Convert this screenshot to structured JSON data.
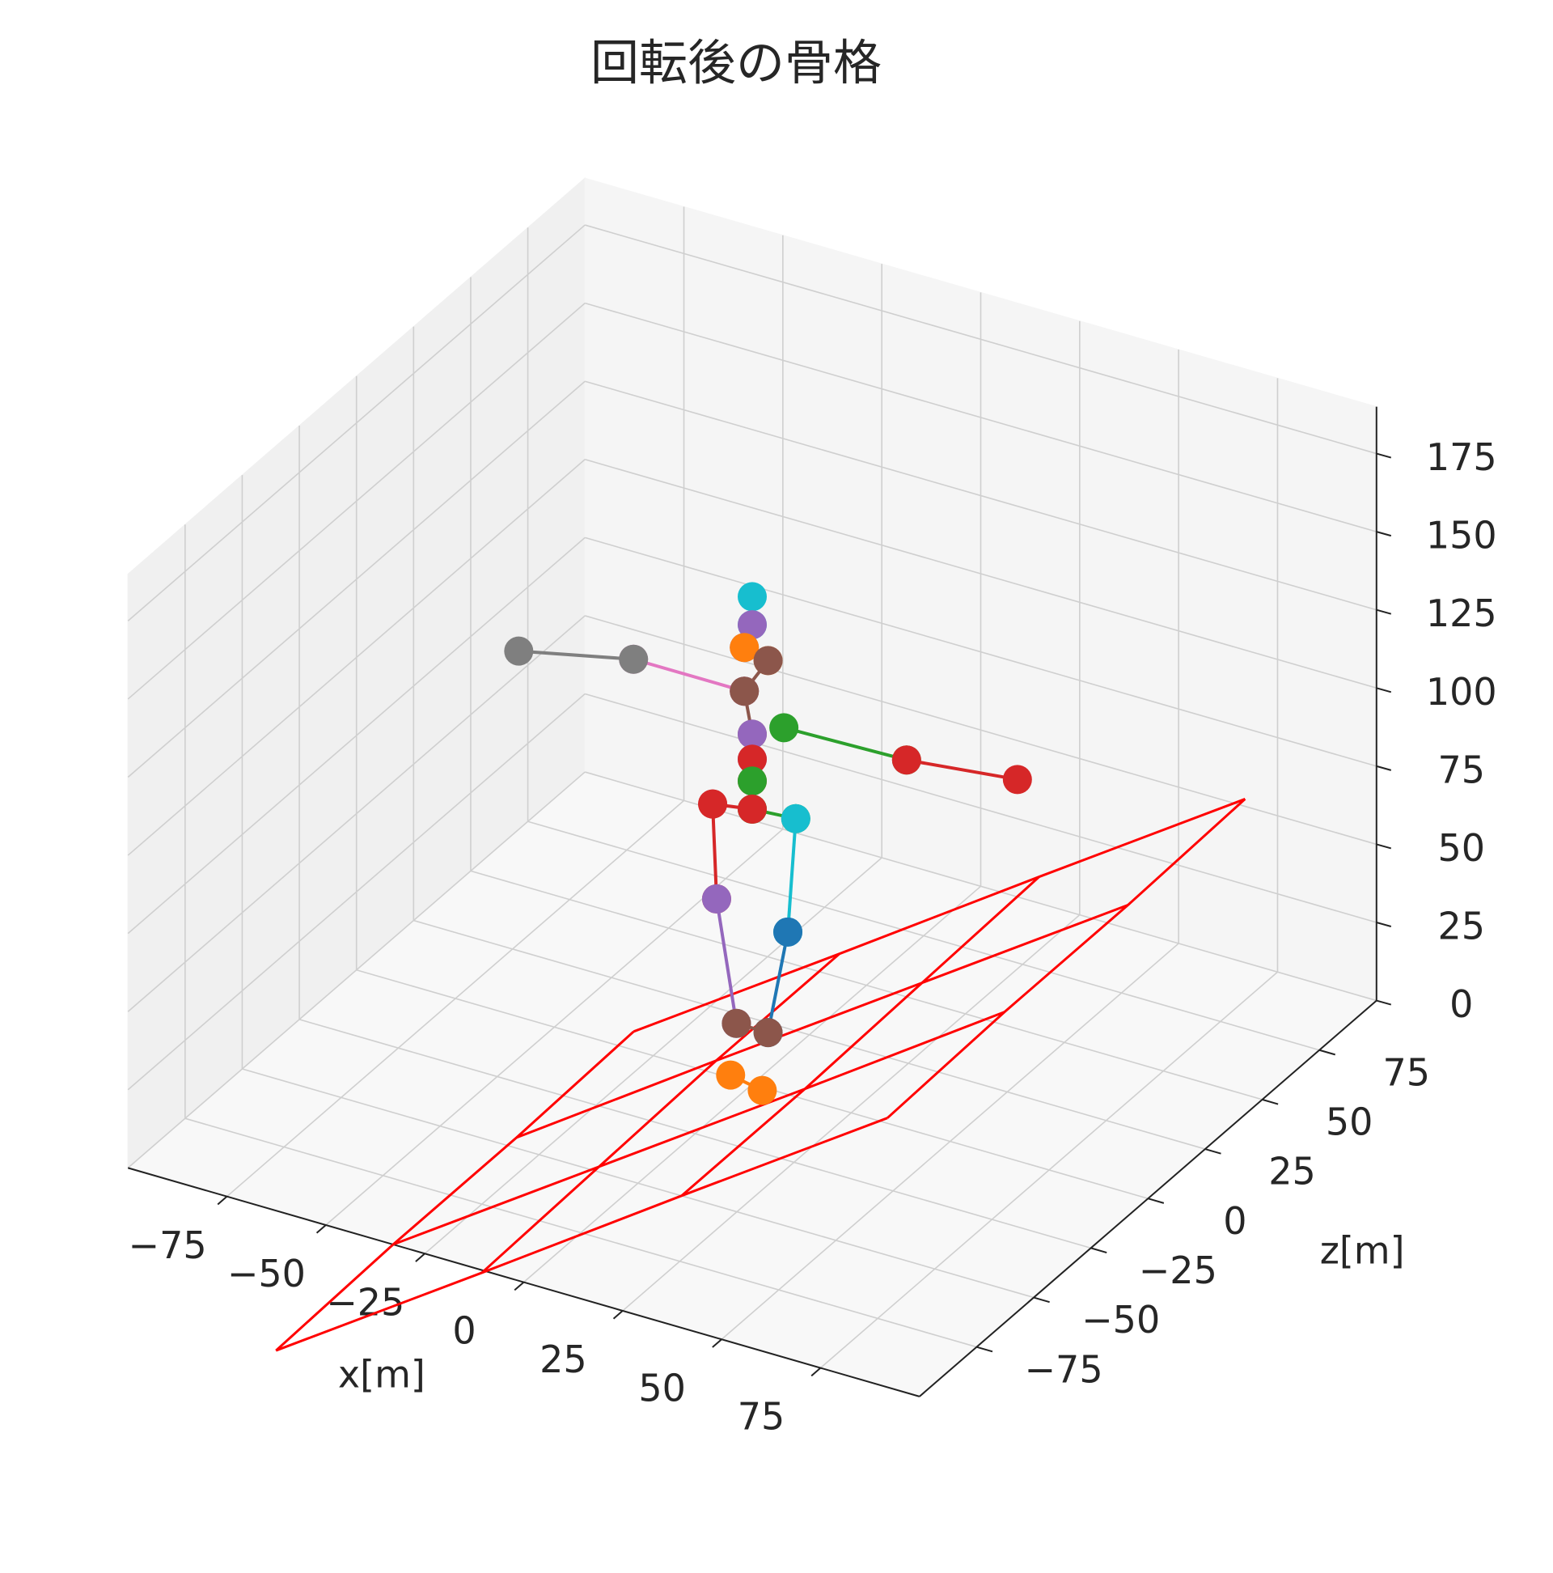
{
  "chart_data": {
    "type": "skeleton3d",
    "title": "回転後の骨格",
    "xlabel": "x[m]",
    "ylabel": "z[m]",
    "xlim": [
      -100,
      100
    ],
    "ylim": [
      -100,
      100
    ],
    "zlim": [
      0,
      190
    ],
    "xticks": [
      {
        "value": -75,
        "label": "−75"
      },
      {
        "value": -50,
        "label": "−50"
      },
      {
        "value": -25,
        "label": "−25"
      },
      0,
      25,
      50,
      75
    ],
    "yticks": [
      {
        "value": -75,
        "label": "−75"
      },
      {
        "value": -50,
        "label": "−50"
      },
      {
        "value": -25,
        "label": "−25"
      },
      0,
      25,
      50,
      75
    ],
    "zticks": [
      0,
      25,
      50,
      75,
      100,
      125,
      150,
      175
    ],
    "grid": true,
    "floor": {
      "color": "#ff0000",
      "x": [
        [
          -32,
          -10,
          11,
          33
        ],
        [
          -33,
          -11,
          11,
          32
        ],
        [
          -33,
          -12,
          10,
          32
        ],
        [
          -34,
          -12,
          9,
          31
        ]
      ],
      "y": [
        [
          -153,
          -101,
          -50,
          2
        ],
        [
          -100,
          -48,
          4,
          55
        ],
        [
          -46,
          5,
          57,
          109
        ],
        [
          7,
          59,
          110,
          162
        ]
      ],
      "z": [
        [
          0,
          0,
          0,
          0
        ],
        [
          0,
          0,
          0,
          0
        ],
        [
          0,
          0,
          0,
          0
        ],
        [
          0,
          0,
          0,
          0
        ]
      ]
    },
    "series": [
      {
        "color": "#17becf",
        "x": [
          0,
          0
        ],
        "y": [
          0,
          0
        ],
        "z": [
          156,
          147
        ]
      },
      {
        "color": "#9467bd",
        "x": [
          0,
          -2
        ],
        "y": [
          0,
          0
        ],
        "z": [
          147,
          139
        ]
      },
      {
        "color": "#ff7f0e",
        "x": [
          -2,
          4
        ],
        "y": [
          0,
          0
        ],
        "z": [
          139,
          137
        ]
      },
      {
        "color": "#8c564b",
        "x": [
          4,
          -2
        ],
        "y": [
          0,
          0
        ],
        "z": [
          137,
          125
        ]
      },
      {
        "color": "#e377c2",
        "x": [
          -2,
          -30
        ],
        "y": [
          0,
          0
        ],
        "z": [
          125,
          125
        ]
      },
      {
        "color": "#7f7f7f",
        "x": [
          -30,
          -59
        ],
        "y": [
          0,
          0
        ],
        "z": [
          125,
          117
        ]
      },
      {
        "color": "#2ca02c",
        "x": [
          8,
          39
        ],
        "y": [
          0,
          0
        ],
        "z": [
          117,
          118
        ]
      },
      {
        "color": "#d62728",
        "x": [
          39,
          67
        ],
        "y": [
          0,
          0
        ],
        "z": [
          118,
          122
        ]
      },
      {
        "color": "#8c564b",
        "x": [
          -2,
          0
        ],
        "y": [
          0,
          0
        ],
        "z": [
          125,
          112
        ]
      },
      {
        "color": "#9467bd",
        "x": [
          0,
          0
        ],
        "y": [
          0,
          0
        ],
        "z": [
          112,
          104
        ]
      },
      {
        "color": "#d62728",
        "x": [
          0,
          0
        ],
        "y": [
          0,
          0
        ],
        "z": [
          104,
          97
        ]
      },
      {
        "color": "#2ca02c",
        "x": [
          0,
          0
        ],
        "y": [
          0,
          0
        ],
        "z": [
          97,
          88
        ]
      },
      {
        "color": "#2ca02c",
        "x": [
          0,
          11
        ],
        "y": [
          0,
          0
        ],
        "z": [
          88,
          89
        ]
      },
      {
        "color": "#d62728",
        "x": [
          0,
          -10
        ],
        "y": [
          0,
          0
        ],
        "z": [
          88,
          86
        ]
      },
      {
        "color": "#d62728",
        "x": [
          -10,
          -9
        ],
        "y": [
          0,
          0
        ],
        "z": [
          86,
          56
        ]
      },
      {
        "color": "#9467bd",
        "x": [
          -9,
          -4
        ],
        "y": [
          0,
          0
        ],
        "z": [
          56,
          18
        ]
      },
      {
        "color": "#17becf",
        "x": [
          11,
          9
        ],
        "y": [
          0,
          0
        ],
        "z": [
          89,
          52
        ]
      },
      {
        "color": "#1f77b4",
        "x": [
          9,
          4
        ],
        "y": [
          0,
          0
        ],
        "z": [
          52,
          18
        ]
      },
      {
        "color": "#8c564b",
        "x": [
          -4,
          4
        ],
        "y": [
          0,
          0
        ],
        "z": [
          18,
          18
        ]
      },
      {
        "color": "#ff7f0e",
        "x": [
          -2,
          6
        ],
        "y": [
          -6,
          -6
        ],
        "z": [
          6,
          4
        ]
      }
    ]
  }
}
